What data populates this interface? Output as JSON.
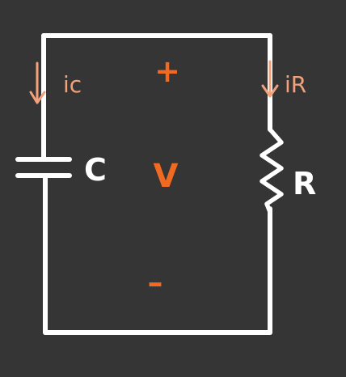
{
  "diagram": {
    "type": "parallel RC circuit",
    "components": {
      "capacitor_label": "C",
      "resistor_label": "R"
    },
    "voltage": {
      "label": "V",
      "plus": "+",
      "minus": "–"
    },
    "currents": {
      "capacitor_current": "ic",
      "resistor_current": "iR"
    }
  },
  "colors": {
    "background": "#353535",
    "wire": "#ffffff",
    "accent_orange": "#f26a21",
    "arrow_peach": "#f2a27a"
  }
}
